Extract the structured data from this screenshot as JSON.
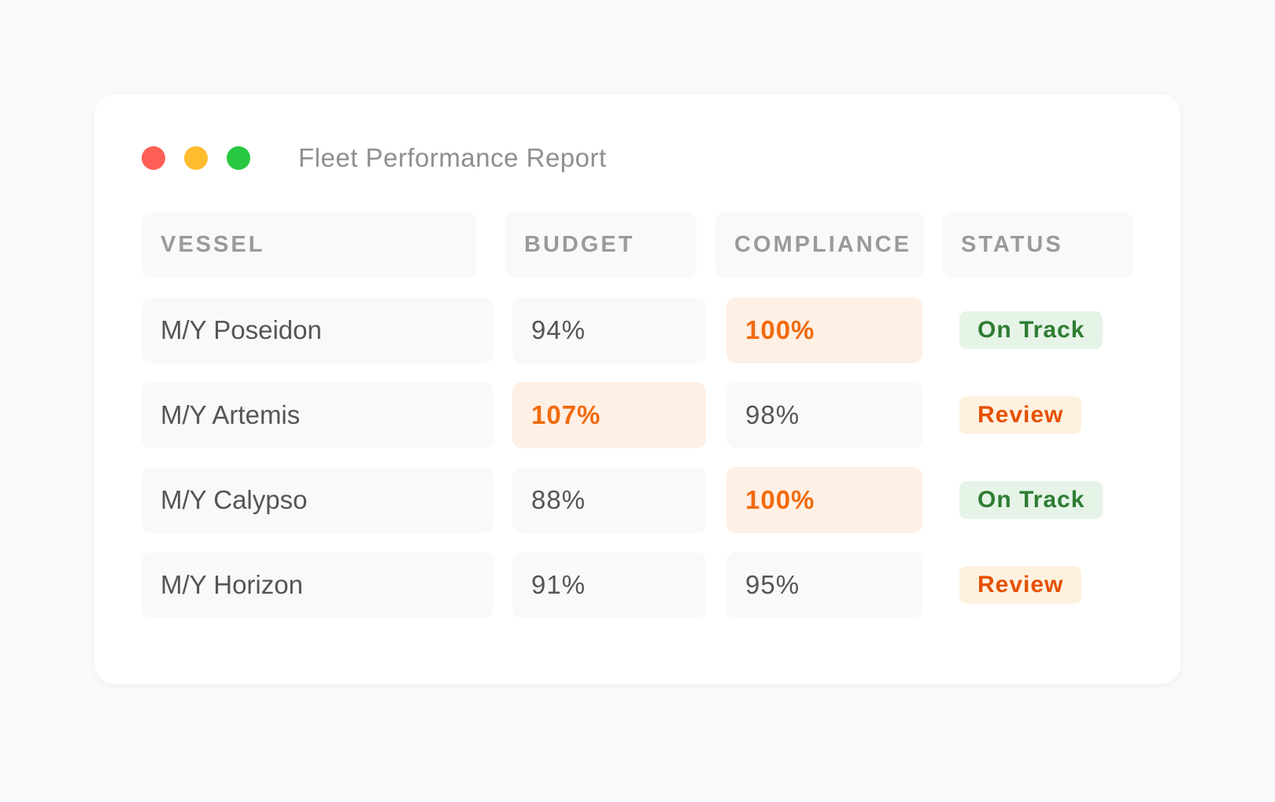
{
  "window": {
    "title": "Fleet Performance Report"
  },
  "table": {
    "headers": [
      "VESSEL",
      "BUDGET",
      "COMPLIANCE",
      "STATUS"
    ],
    "rows": [
      {
        "vessel": "M/Y Poseidon",
        "budget": "94%",
        "compliance": "100%",
        "status": "On Track"
      },
      {
        "vessel": "M/Y Artemis",
        "budget": "107%",
        "compliance": "98%",
        "status": "Review"
      },
      {
        "vessel": "M/Y Calypso",
        "budget": "88%",
        "compliance": "100%",
        "status": "On Track"
      },
      {
        "vessel": "M/Y Horizon",
        "budget": "91%",
        "compliance": "95%",
        "status": "Review"
      }
    ]
  },
  "colors": {
    "highlight_text": "#f26a0d",
    "highlight_bg": "#fff0e5",
    "on_track_text": "#2e7d32",
    "on_track_bg": "#e6f4e8",
    "review_text": "#e65100",
    "review_bg": "#fff1e0"
  }
}
